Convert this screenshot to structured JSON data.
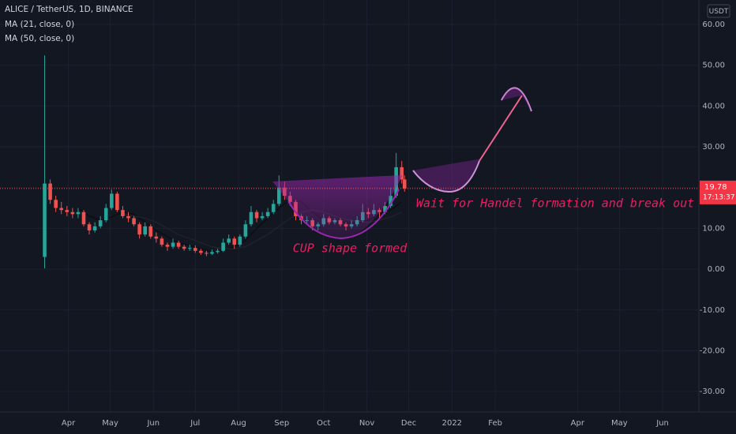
{
  "chart_data": {
    "type": "candlestick",
    "title": "ALICE / TetherUS, 1D, BINANCE",
    "currency": "USDT",
    "countdown": "17:13:37",
    "x": [
      0,
      4,
      8,
      12,
      16,
      20,
      24,
      28,
      32,
      36,
      40,
      44,
      48,
      52,
      56,
      60,
      64,
      68,
      72,
      76,
      80,
      84,
      88,
      92,
      96,
      100,
      104,
      108,
      112,
      116,
      120,
      124,
      128,
      132,
      136,
      140,
      144,
      148,
      152,
      156,
      160,
      164,
      168,
      172,
      176,
      180,
      184,
      188,
      192,
      196,
      200,
      204,
      208,
      212,
      216,
      220,
      224,
      228,
      232,
      236,
      240,
      244,
      248,
      252,
      256,
      258
    ],
    "open": [
      3,
      21,
      17,
      15,
      14.5,
      14,
      13.5,
      14,
      11,
      9.5,
      10.5,
      12,
      15,
      18.5,
      14.5,
      13,
      12.5,
      11,
      8.5,
      10.5,
      8,
      7.5,
      6,
      5.5,
      6.5,
      5.5,
      5,
      5.2,
      4.5,
      4,
      3.8,
      4.2,
      4.5,
      6.5,
      7.5,
      6,
      8,
      11,
      14,
      12.5,
      13,
      14,
      16,
      20,
      18,
      16.5,
      13,
      12,
      12,
      10.5,
      11,
      12.5,
      11.5,
      12,
      11,
      10.5,
      11,
      12,
      14,
      13.5,
      14.5,
      14,
      15.5,
      18,
      25,
      22
    ],
    "high": [
      52.4,
      22,
      18,
      16.5,
      15.5,
      15,
      15,
      14.5,
      11.5,
      11.5,
      13,
      16,
      19.5,
      19,
      15.5,
      14,
      13,
      11.5,
      11.5,
      11,
      9,
      8,
      6.5,
      7.5,
      7,
      6,
      6,
      5.8,
      5,
      4.5,
      4.8,
      5,
      7.5,
      8.5,
      8,
      8.5,
      12,
      15.5,
      14.5,
      14,
      15,
      17,
      23,
      21.5,
      19,
      17,
      13.5,
      13,
      12.5,
      11.5,
      13.5,
      13,
      12.5,
      12.5,
      11.5,
      12,
      13,
      16,
      15,
      16,
      15,
      16.5,
      20,
      28.5,
      26.5,
      23
    ],
    "low": [
      0.2,
      16,
      14,
      13.5,
      13,
      12.5,
      12.5,
      10.5,
      8.5,
      9,
      10,
      11.5,
      14.5,
      14,
      12.5,
      11.5,
      10.5,
      7.5,
      8,
      7.5,
      6.5,
      5.5,
      4.5,
      5,
      5,
      4.5,
      4.5,
      4,
      3.5,
      3.2,
      3.5,
      3.8,
      4.2,
      6,
      5,
      5.5,
      7.5,
      10.5,
      11.5,
      12,
      12.5,
      13.5,
      15.5,
      17,
      15.5,
      12,
      11,
      11,
      9.5,
      9.5,
      10.5,
      11,
      11,
      10.5,
      9.5,
      10,
      10.5,
      11.5,
      12.5,
      13,
      12.5,
      13.5,
      15,
      17.5,
      21,
      19
    ],
    "close": [
      21,
      17,
      15,
      14.5,
      14,
      13.5,
      14,
      11,
      9.5,
      10.5,
      12,
      15,
      18.5,
      14.5,
      13,
      12.5,
      11,
      8.5,
      10.5,
      8,
      7.5,
      6,
      5.5,
      6.5,
      5.5,
      5,
      5.2,
      4.5,
      4,
      3.8,
      4.2,
      4.5,
      6.5,
      7.5,
      6,
      8,
      11,
      14,
      12.5,
      13,
      14,
      16,
      20,
      18,
      16.5,
      13,
      12,
      12,
      10.5,
      11,
      12.5,
      11.5,
      12,
      11,
      10.5,
      11,
      12,
      14,
      13.5,
      14.5,
      14,
      15.5,
      18,
      25,
      22,
      19.78
    ],
    "up_color": "#26a69a",
    "down_color": "#ef5350",
    "lines": [
      {
        "name": "MA (21, close, 0)",
        "color": "#0b0d13",
        "x": [
          24,
          32,
          40,
          48,
          56,
          64,
          72,
          80,
          88,
          96,
          104,
          112,
          120,
          128,
          136,
          144,
          152,
          160,
          168,
          176,
          184,
          192,
          200,
          208,
          216,
          224,
          232,
          240,
          248,
          256
        ],
        "values": [
          15,
          13,
          12,
          12.8,
          14,
          13.5,
          11.5,
          9.5,
          8,
          6.5,
          5.8,
          5,
          4.3,
          4.5,
          5.5,
          7,
          10,
          12.5,
          15,
          17,
          16.5,
          14,
          12,
          11.5,
          11.5,
          11.2,
          12,
          13.5,
          14.5,
          16.5
        ]
      },
      {
        "name": "MA (50, close, 0)",
        "color": "#20232c",
        "x": [
          56,
          64,
          72,
          80,
          88,
          96,
          104,
          112,
          120,
          128,
          136,
          144,
          152,
          160,
          168,
          176,
          184,
          192,
          200,
          208,
          216,
          224,
          232,
          240,
          248,
          256
        ],
        "values": [
          13.5,
          13,
          12.5,
          11.5,
          10,
          8.5,
          7.5,
          6.5,
          5.5,
          5,
          5,
          5.5,
          7,
          8.5,
          10.5,
          12.5,
          14,
          14.5,
          14,
          13,
          12.2,
          11.8,
          11.5,
          12,
          12.8,
          14
        ]
      }
    ],
    "annotations": [
      "CUP shape formed",
      "Wait for Handel formation and break out"
    ],
    "xlim": [
      -32,
      469
    ],
    "xticks": [
      {
        "value": 17,
        "label": "Apr"
      },
      {
        "value": 47,
        "label": "May"
      },
      {
        "value": 78,
        "label": "Jun"
      },
      {
        "value": 108,
        "label": "Jul"
      },
      {
        "value": 139,
        "label": "Aug"
      },
      {
        "value": 170,
        "label": "Sep"
      },
      {
        "value": 200,
        "label": "Oct"
      },
      {
        "value": 231,
        "label": "Nov"
      },
      {
        "value": 261,
        "label": "Dec"
      },
      {
        "value": 292,
        "label": "2022"
      },
      {
        "value": 323,
        "label": "Feb"
      },
      {
        "value": 382,
        "label": "Apr"
      },
      {
        "value": 412,
        "label": "May"
      },
      {
        "value": 443,
        "label": "Jun"
      }
    ],
    "ylim": [
      -35,
      66
    ],
    "yticks": [
      {
        "value": -30,
        "label": "-30.00"
      },
      {
        "value": -20,
        "label": "-20.00"
      },
      {
        "value": -10,
        "label": "-10.00"
      },
      {
        "value": 0,
        "label": "0.00"
      },
      {
        "value": 10,
        "label": "10.00"
      },
      {
        "value": 20,
        "label": "20.00"
      },
      {
        "value": 30,
        "label": "30.00"
      },
      {
        "value": 40,
        "label": "40.00"
      },
      {
        "value": 50,
        "label": "50.00"
      },
      {
        "value": 60,
        "label": "60.00"
      }
    ],
    "grid": true
  }
}
